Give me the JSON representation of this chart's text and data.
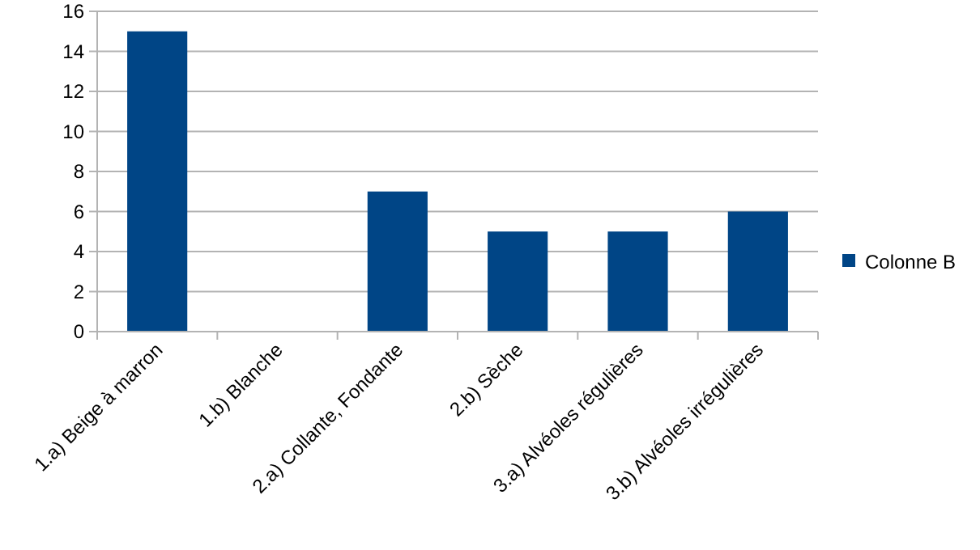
{
  "chart_data": {
    "type": "bar",
    "categories": [
      "1.a) Beige à marron",
      "1.b) Blanche",
      "2.a) Collante, Fondante",
      "2.b) Sèche",
      "3.a) Alvéoles régulières",
      "3.b) Alvéoles irrégulières"
    ],
    "series": [
      {
        "name": "Colonne B",
        "color": "#004586",
        "values": [
          15,
          0,
          7,
          5,
          5,
          6
        ]
      }
    ],
    "ylim": [
      0,
      16
    ],
    "yticks": [
      0,
      2,
      4,
      6,
      8,
      10,
      12,
      14,
      16
    ],
    "grid": "y",
    "legend": "right"
  }
}
